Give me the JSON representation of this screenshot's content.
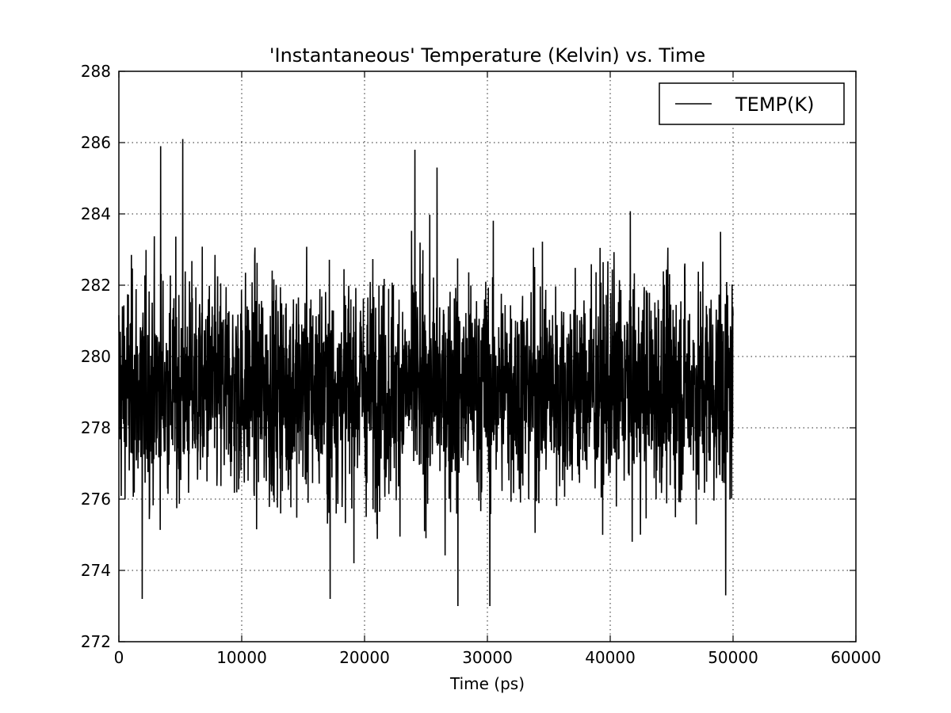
{
  "chart_data": {
    "type": "line",
    "title": "'Instantaneous' Temperature (Kelvin) vs. Time",
    "xlabel": "Time (ps)",
    "ylabel": "",
    "xlim": [
      0,
      60000
    ],
    "ylim": [
      272,
      288
    ],
    "xticks": [
      0,
      10000,
      20000,
      30000,
      40000,
      50000,
      60000
    ],
    "xtick_labels": [
      "0",
      "10000",
      "20000",
      "30000",
      "40000",
      "50000",
      "60000"
    ],
    "yticks": [
      272,
      274,
      276,
      278,
      280,
      282,
      284,
      286,
      288
    ],
    "ytick_labels": [
      "272",
      "274",
      "276",
      "278",
      "280",
      "282",
      "284",
      "286",
      "288"
    ],
    "grid": true,
    "legend_position": "top-right",
    "series": [
      {
        "name": "TEMP(K)",
        "color": "#000000",
        "x_range": [
          0,
          50000
        ],
        "mean": 279.1,
        "typical_band": [
          276.0,
          283.0
        ],
        "observed_min": 273.0,
        "observed_max": 286.1,
        "extreme_points": [
          {
            "x": 5200,
            "y": 286.1
          },
          {
            "x": 3400,
            "y": 285.9
          },
          {
            "x": 24100,
            "y": 285.8
          },
          {
            "x": 25900,
            "y": 285.3
          },
          {
            "x": 1900,
            "y": 273.2
          },
          {
            "x": 17200,
            "y": 273.2
          },
          {
            "x": 27600,
            "y": 273.0
          },
          {
            "x": 30200,
            "y": 273.0
          },
          {
            "x": 49400,
            "y": 273.3
          }
        ]
      }
    ]
  }
}
